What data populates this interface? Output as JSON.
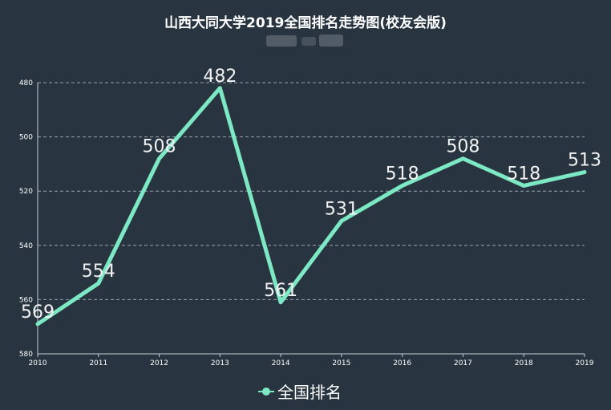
{
  "chart_data": {
    "type": "line",
    "title": "山西大同大学2019全国排名走势图(校友会版)",
    "xlabel": "",
    "ylabel": "",
    "categories": [
      "2010",
      "2011",
      "2012",
      "2013",
      "2014",
      "2015",
      "2016",
      "2017",
      "2018",
      "2019"
    ],
    "series": [
      {
        "name": "全国排名",
        "values": [
          569,
          554,
          508,
          482,
          561,
          531,
          518,
          508,
          518,
          513
        ],
        "color": "#7de8c4"
      }
    ],
    "ylim": [
      480,
      580
    ],
    "y_inverted": true,
    "yticks": [
      480,
      500,
      520,
      540,
      560,
      580
    ],
    "grid": true,
    "legend_position": "bottom-center"
  },
  "colors": {
    "background": "#283540",
    "line": "#7de8c4",
    "grid": "#9aa3ab",
    "axis": "#c9cfd4"
  }
}
